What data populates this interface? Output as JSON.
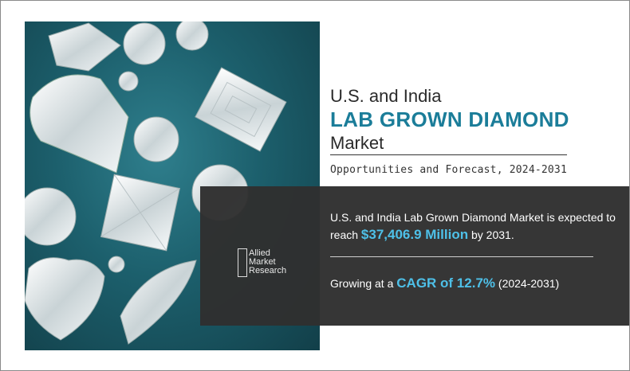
{
  "title": {
    "line1": "U.S. and India",
    "line2": "LAB GROWN DIAMOND",
    "line3": "Market"
  },
  "subtitle": "Opportunities and Forecast, 2024-2031",
  "logo": {
    "line1": "Allied",
    "line2": "Market",
    "line3": "Research"
  },
  "stat1": {
    "text_a": "U.S. and India Lab Grown Diamond Market is expected to reach ",
    "highlight": "$37,406.9 Million",
    "text_b": " by 2031."
  },
  "stat2": {
    "text_a": "Growing at a ",
    "highlight": "CAGR of 12.7%",
    "text_b": " (2024-2031)"
  },
  "colors": {
    "accent_title": "#1b7d99",
    "accent_highlight": "#4ec0e8",
    "panel": "#303030",
    "photo_background": "#1c5f6c"
  }
}
